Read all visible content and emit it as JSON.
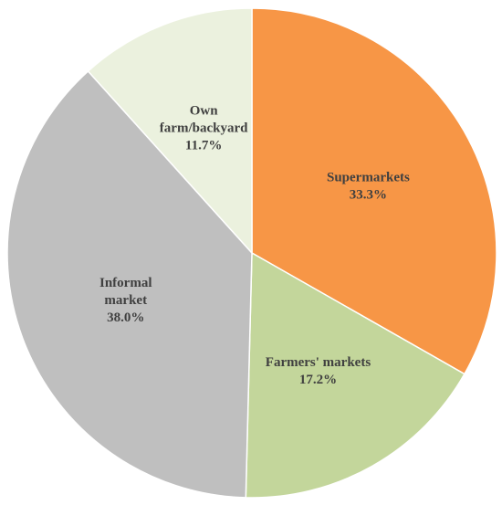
{
  "chart_data": {
    "type": "pie",
    "categories": [
      [
        "Supermarkets"
      ],
      [
        "Farmers' markets"
      ],
      [
        "Informal",
        "market"
      ],
      [
        "Own",
        "farm/backyard"
      ]
    ],
    "values": [
      33.3,
      17.2,
      38.0,
      11.7
    ],
    "value_labels": [
      "33.3%",
      "17.2%",
      "38.0%",
      "11.7%"
    ],
    "colors": [
      "#F79646",
      "#C3D69B",
      "#BFBFBF",
      "#EBF1DE"
    ]
  }
}
